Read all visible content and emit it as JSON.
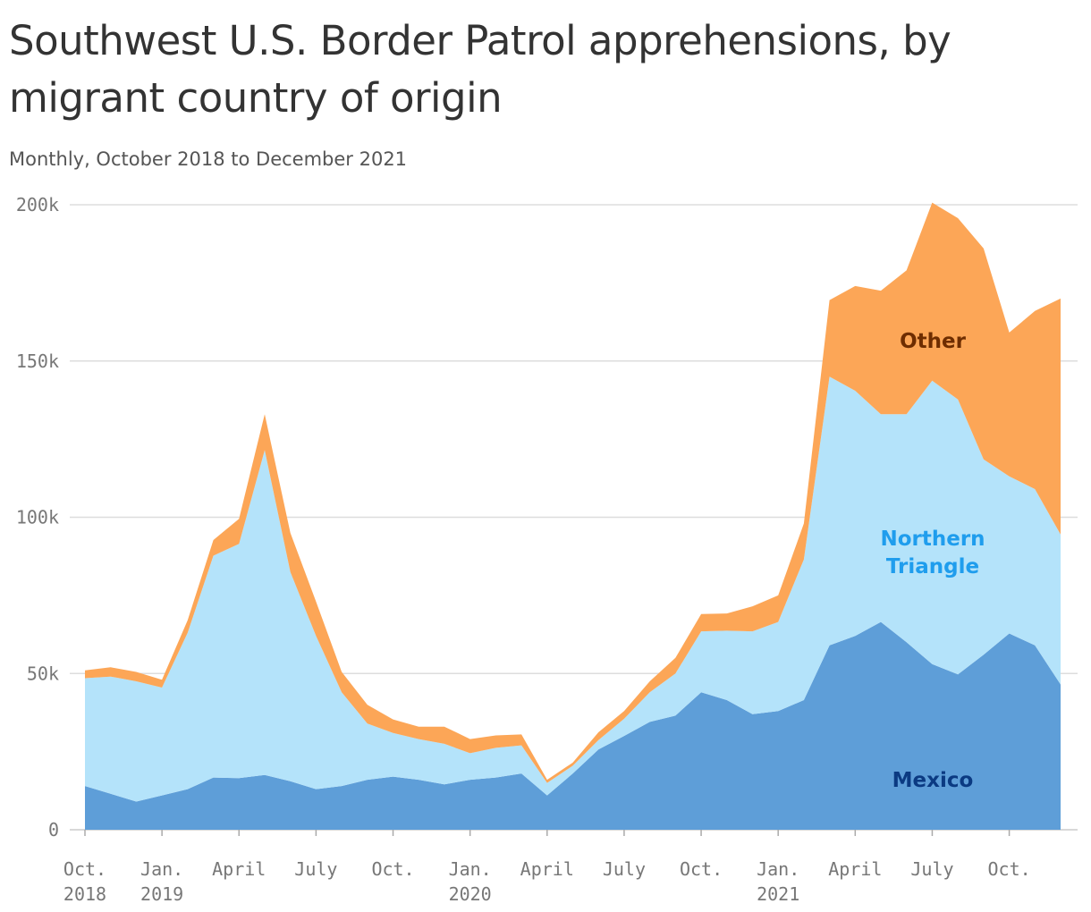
{
  "title": "Southwest U.S. Border Patrol apprehensions, by migrant country of origin",
  "subtitle": "Monthly, October 2018 to December 2021",
  "colors": {
    "mexico": "#5e9ed8",
    "northern_triangle": "#b4e3fa",
    "other": "#fca657",
    "mexico_label": "#0b3a82",
    "northern_triangle_label": "#1f9ded",
    "other_label": "#6e2d00",
    "grid": "#dddddd",
    "axis": "#cccccc"
  },
  "chart_data": {
    "type": "area",
    "stacked": true,
    "x": [
      "2018-10",
      "2018-11",
      "2018-12",
      "2019-01",
      "2019-02",
      "2019-03",
      "2019-04",
      "2019-05",
      "2019-06",
      "2019-07",
      "2019-08",
      "2019-09",
      "2019-10",
      "2019-11",
      "2019-12",
      "2020-01",
      "2020-02",
      "2020-03",
      "2020-04",
      "2020-05",
      "2020-06",
      "2020-07",
      "2020-08",
      "2020-09",
      "2020-10",
      "2020-11",
      "2020-12",
      "2021-01",
      "2021-02",
      "2021-03",
      "2021-04",
      "2021-05",
      "2021-06",
      "2021-07",
      "2021-08",
      "2021-09",
      "2021-10",
      "2021-11",
      "2021-12"
    ],
    "series": [
      {
        "name": "Mexico",
        "values": [
          14000,
          11500,
          9000,
          11000,
          13000,
          16700,
          16500,
          17500,
          15500,
          13000,
          14000,
          16000,
          17000,
          16000,
          14500,
          16000,
          16700,
          18000,
          11000,
          18000,
          25700,
          30000,
          34500,
          36500,
          44000,
          41500,
          37000,
          38000,
          41500,
          59000,
          62000,
          66500,
          60000,
          53000,
          49700,
          56000,
          62800,
          59000,
          46500
        ]
      },
      {
        "name": "Northern Triangle",
        "values": [
          34500,
          37500,
          38500,
          34500,
          50000,
          71000,
          75000,
          104000,
          67000,
          49000,
          30000,
          18000,
          14000,
          13000,
          13000,
          8500,
          9500,
          9000,
          4000,
          2500,
          3000,
          5500,
          9500,
          13500,
          19500,
          22200,
          26500,
          28500,
          45000,
          86000,
          78500,
          66500,
          73000,
          90700,
          88000,
          62500,
          50300,
          50000,
          48000
        ]
      },
      {
        "name": "Other",
        "values": [
          2500,
          3000,
          3000,
          2500,
          4000,
          5000,
          8000,
          11500,
          12500,
          11000,
          6500,
          6000,
          4300,
          4000,
          5500,
          4500,
          4000,
          3500,
          1000,
          1000,
          2500,
          2500,
          3500,
          5000,
          5500,
          5500,
          8000,
          8500,
          11500,
          24500,
          33500,
          39500,
          46000,
          57000,
          58000,
          67500,
          46000,
          57000,
          75500
        ]
      }
    ],
    "ylim": [
      0,
      200000
    ],
    "yticks": [
      "0",
      "50k",
      "100k",
      "150k",
      "200k"
    ],
    "xticks": [
      {
        "label": "Oct.",
        "year": "2018",
        "x": "2018-10"
      },
      {
        "label": "Jan.",
        "year": "2019",
        "x": "2019-01"
      },
      {
        "label": "April",
        "year": "",
        "x": "2019-04"
      },
      {
        "label": "July",
        "year": "",
        "x": "2019-07"
      },
      {
        "label": "Oct.",
        "year": "",
        "x": "2019-10"
      },
      {
        "label": "Jan.",
        "year": "2020",
        "x": "2020-01"
      },
      {
        "label": "April",
        "year": "",
        "x": "2020-04"
      },
      {
        "label": "July",
        "year": "",
        "x": "2020-07"
      },
      {
        "label": "Oct.",
        "year": "",
        "x": "2020-10"
      },
      {
        "label": "Jan.",
        "year": "2021",
        "x": "2021-01"
      },
      {
        "label": "April",
        "year": "",
        "x": "2021-04"
      },
      {
        "label": "July",
        "year": "",
        "x": "2021-07"
      },
      {
        "label": "Oct.",
        "year": "",
        "x": "2021-10"
      }
    ],
    "annotations": [
      {
        "series": "Other",
        "lines": [
          "Other"
        ]
      },
      {
        "series": "Northern Triangle",
        "lines": [
          "Northern",
          "Triangle"
        ]
      },
      {
        "series": "Mexico",
        "lines": [
          "Mexico"
        ]
      }
    ],
    "grid": true,
    "legend": "none"
  }
}
